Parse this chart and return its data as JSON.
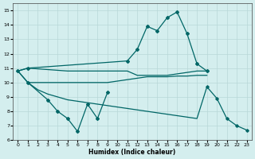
{
  "xlabel": "Humidex (Indice chaleur)",
  "background_color": "#d4eeee",
  "grid_color": "#b8d8d8",
  "line_color": "#006666",
  "ylim": [
    6,
    15.5
  ],
  "xlim": [
    -0.5,
    23.5
  ],
  "yticks": [
    6,
    7,
    8,
    9,
    10,
    11,
    12,
    13,
    14,
    15
  ],
  "xticks": [
    0,
    1,
    2,
    3,
    4,
    5,
    6,
    7,
    8,
    9,
    10,
    11,
    12,
    13,
    14,
    15,
    16,
    17,
    18,
    19,
    20,
    21,
    22,
    23
  ],
  "curve_main_x": [
    0,
    1,
    11,
    12,
    13,
    14,
    15,
    16,
    17,
    18,
    19
  ],
  "curve_main_y": [
    10.8,
    11.0,
    11.5,
    12.3,
    13.9,
    13.6,
    14.5,
    14.9,
    13.4,
    11.3,
    10.8
  ],
  "curve_zigzag_x": [
    1,
    3,
    4,
    5,
    6,
    7,
    8,
    9
  ],
  "curve_zigzag_y": [
    10.0,
    8.8,
    8.0,
    7.5,
    6.6,
    8.5,
    7.5,
    9.3
  ],
  "line_upper_x": [
    0,
    1,
    2,
    3,
    4,
    5,
    6,
    7,
    8,
    9,
    10,
    11,
    12,
    13,
    14,
    15,
    16,
    17,
    18,
    19
  ],
  "line_upper_y": [
    10.8,
    11.0,
    10.95,
    10.9,
    10.85,
    10.8,
    10.8,
    10.8,
    10.8,
    10.8,
    10.8,
    10.8,
    10.5,
    10.5,
    10.5,
    10.5,
    10.6,
    10.7,
    10.8,
    10.8
  ],
  "line_mid_x": [
    0,
    1,
    2,
    3,
    4,
    5,
    6,
    7,
    8,
    9,
    10,
    11,
    12,
    13,
    14,
    15,
    16,
    17,
    18,
    19
  ],
  "line_mid_y": [
    10.8,
    10.0,
    10.0,
    10.0,
    10.0,
    10.0,
    10.0,
    10.0,
    10.0,
    10.0,
    10.1,
    10.2,
    10.3,
    10.4,
    10.4,
    10.4,
    10.45,
    10.45,
    10.5,
    10.5
  ],
  "line_lower_x": [
    0,
    1,
    2,
    3,
    4,
    5,
    6,
    7,
    8,
    9,
    10,
    11,
    12,
    13,
    14,
    15,
    16,
    17,
    18,
    19,
    20,
    21,
    22,
    23
  ],
  "line_lower_y": [
    10.8,
    10.0,
    9.5,
    9.2,
    9.0,
    8.8,
    8.7,
    8.6,
    8.5,
    8.4,
    8.3,
    8.2,
    8.1,
    8.0,
    7.9,
    7.8,
    7.7,
    7.6,
    7.5,
    9.7,
    8.9,
    7.5,
    7.0,
    6.7
  ]
}
